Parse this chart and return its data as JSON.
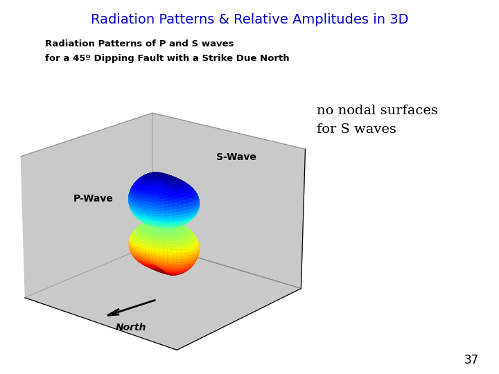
{
  "title": "Radiation Patterns & Relative Amplitudes in 3D",
  "subtitle_line1": "Radiation Patterns of P and S waves",
  "subtitle_line2": "for a 45º Dipping Fault with a Strike Due North",
  "label_s_wave": "S-Wave",
  "label_p_wave": "P-Wave",
  "label_north": "North",
  "annotation": "no nodal surfaces\nfor S waves",
  "page_number": "37",
  "title_color": "#0000CC",
  "subtitle_color": "#000000",
  "annotation_color": "#000000",
  "bg_color": "#FFFFFF",
  "panel_bg": "#C0C0C0",
  "figure_width": 7.2,
  "figure_height": 5.4,
  "dpi": 100
}
